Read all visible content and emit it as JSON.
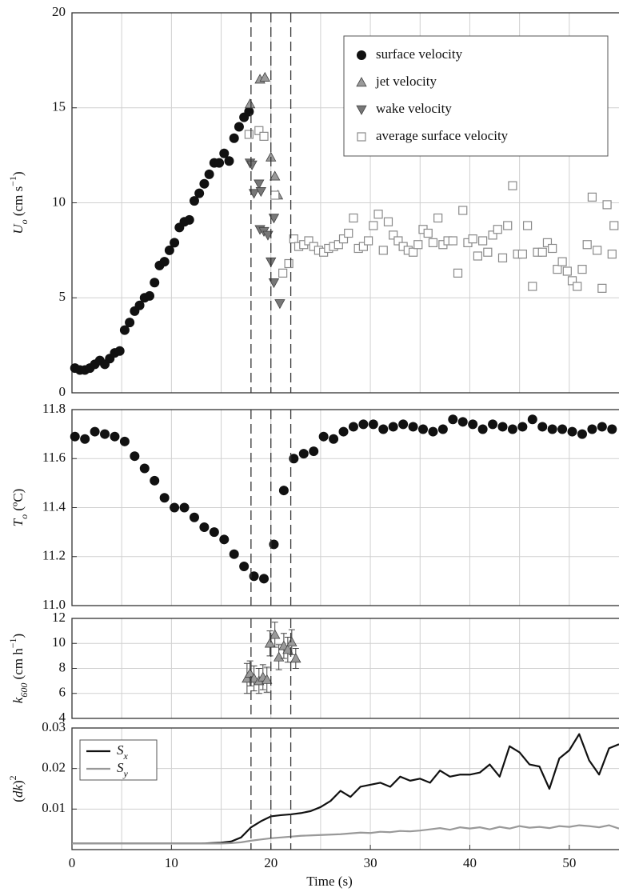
{
  "chart_data": [
    {
      "type": "scatter",
      "ylabel": [
        "U",
        "o",
        " (cm s",
        "−1",
        ")"
      ],
      "xlim": [
        0,
        55
      ],
      "ylim": [
        0,
        20
      ],
      "yticks": [
        0,
        5,
        10,
        15,
        20
      ],
      "xgrid": [
        5,
        10,
        15,
        20,
        25,
        30,
        35,
        40,
        45,
        50
      ],
      "grid": true,
      "legend": "upper right",
      "series": [
        {
          "name": "surface velocity",
          "marker": "circle",
          "color": "#111111",
          "x": [
            0.3,
            0.8,
            1.3,
            1.8,
            2.3,
            2.8,
            3.3,
            3.8,
            4.3,
            4.8,
            5.3,
            5.8,
            6.3,
            6.8,
            7.3,
            7.8,
            8.3,
            8.8,
            9.3,
            9.8,
            10.3,
            10.8,
            11.3,
            11.8,
            12.3,
            12.8,
            13.3,
            13.8,
            14.3,
            14.8,
            15.3,
            15.8,
            16.3,
            16.8,
            17.3,
            17.8
          ],
          "values": [
            1.3,
            1.2,
            1.2,
            1.3,
            1.5,
            1.7,
            1.5,
            1.8,
            2.1,
            2.2,
            3.3,
            3.7,
            4.3,
            4.6,
            5.0,
            5.1,
            5.8,
            6.7,
            6.9,
            7.5,
            7.9,
            8.7,
            9.0,
            9.1,
            10.1,
            10.5,
            11.0,
            11.5,
            12.1,
            12.1,
            12.6,
            12.2,
            13.4,
            14.0,
            14.5,
            14.8
          ]
        },
        {
          "name": "jet velocity",
          "marker": "triangle-up",
          "color": "#9a9a9a",
          "x": [
            17.9,
            18.9,
            19.4,
            20.0,
            20.4,
            20.7
          ],
          "values": [
            15.2,
            16.5,
            16.6,
            12.4,
            11.4,
            10.4
          ]
        },
        {
          "name": "wake velocity",
          "marker": "triangle-down",
          "color": "#777777",
          "x": [
            17.9,
            18.1,
            18.3,
            18.8,
            19.0,
            18.9,
            19.3,
            19.7,
            20.0,
            20.3,
            20.9,
            20.3
          ],
          "values": [
            12.1,
            12.0,
            10.5,
            11.0,
            10.6,
            8.6,
            8.5,
            8.3,
            6.9,
            5.8,
            4.7,
            9.2
          ]
        },
        {
          "name": "average surface velocity",
          "marker": "square",
          "color": "#8a8a8a",
          "x": [
            17.8,
            18.8,
            19.3,
            20.4,
            21.2,
            21.8,
            22.3,
            22.8,
            23.3,
            23.8,
            24.3,
            24.8,
            25.3,
            25.8,
            26.3,
            26.8,
            27.3,
            27.8,
            28.3,
            28.8,
            29.3,
            29.8,
            30.3,
            30.8,
            31.3,
            31.8,
            32.3,
            32.8,
            33.3,
            33.8,
            34.3,
            34.8,
            35.3,
            35.8,
            36.3,
            36.8,
            37.3,
            37.8,
            38.3,
            38.8,
            39.3,
            39.8,
            40.3,
            40.8,
            41.3,
            41.8,
            42.3,
            42.8,
            43.3,
            43.8,
            44.3,
            44.8,
            45.3,
            45.8,
            46.3,
            46.8,
            47.3,
            47.8,
            48.3,
            48.8,
            49.3,
            49.8,
            50.3,
            50.8,
            51.3,
            51.8,
            52.3,
            52.8,
            53.3,
            53.8,
            54.3,
            54.5
          ],
          "values": [
            13.6,
            13.8,
            13.5,
            10.4,
            6.3,
            6.8,
            8.1,
            7.7,
            7.8,
            8.0,
            7.7,
            7.5,
            7.4,
            7.6,
            7.7,
            7.8,
            8.1,
            8.4,
            9.2,
            7.6,
            7.7,
            8.0,
            8.8,
            9.4,
            7.5,
            9.0,
            8.3,
            8.0,
            7.7,
            7.5,
            7.4,
            7.8,
            8.6,
            8.4,
            7.9,
            9.2,
            7.8,
            8.0,
            8.0,
            6.3,
            9.6,
            7.9,
            8.1,
            7.2,
            8.0,
            7.4,
            8.3,
            8.6,
            7.1,
            8.8,
            10.9,
            7.3,
            7.3,
            8.8,
            5.6,
            7.4,
            7.4,
            7.9,
            7.6,
            6.5,
            6.9,
            6.4,
            5.9,
            5.6,
            6.5,
            7.8,
            10.3,
            7.5,
            5.5,
            9.9,
            7.3,
            8.8
          ]
        }
      ]
    },
    {
      "type": "scatter",
      "ylabel": [
        "T",
        "o",
        " (ºC)"
      ],
      "xlim": [
        0,
        55
      ],
      "ylim": [
        11.0,
        11.8
      ],
      "yticks": [
        {
          "value": 11.0,
          "label": "11.0"
        },
        11.2,
        11.4,
        11.6,
        11.8
      ],
      "xgrid": [
        5,
        10,
        15,
        20,
        25,
        30,
        35,
        40,
        45,
        50
      ],
      "grid": true,
      "series": [
        {
          "marker": "circle",
          "color": "#111111",
          "x": [
            0.3,
            1.3,
            2.3,
            3.3,
            4.3,
            5.3,
            6.3,
            7.3,
            8.3,
            9.3,
            10.3,
            11.3,
            12.3,
            13.3,
            14.3,
            15.3,
            16.3,
            17.3,
            18.3,
            19.3,
            20.3,
            21.3,
            22.3,
            23.3,
            24.3,
            25.3,
            26.3,
            27.3,
            28.3,
            29.3,
            30.3,
            31.3,
            32.3,
            33.3,
            34.3,
            35.3,
            36.3,
            37.3,
            38.3,
            39.3,
            40.3,
            41.3,
            42.3,
            43.3,
            44.3,
            45.3,
            46.3,
            47.3,
            48.3,
            49.3,
            50.3,
            51.3,
            52.3,
            53.3,
            54.3
          ],
          "values": [
            11.69,
            11.68,
            11.71,
            11.7,
            11.69,
            11.67,
            11.61,
            11.56,
            11.51,
            11.44,
            11.4,
            11.4,
            11.36,
            11.32,
            11.3,
            11.27,
            11.21,
            11.16,
            11.12,
            11.11,
            11.25,
            11.47,
            11.6,
            11.62,
            11.63,
            11.69,
            11.68,
            11.71,
            11.73,
            11.74,
            11.74,
            11.72,
            11.73,
            11.74,
            11.73,
            11.72,
            11.71,
            11.72,
            11.76,
            11.75,
            11.74,
            11.72,
            11.74,
            11.73,
            11.72,
            11.73,
            11.76,
            11.73,
            11.72,
            11.72,
            11.71,
            11.7,
            11.72,
            11.73,
            11.72
          ]
        }
      ]
    },
    {
      "type": "errorbar",
      "ylabel": [
        "k",
        "600",
        " (cm h",
        "−1",
        ")"
      ],
      "xlim": [
        0,
        55
      ],
      "ylim": [
        4,
        12
      ],
      "yticks": [
        4,
        6,
        8,
        10,
        12
      ],
      "xgrid": [
        5,
        10,
        15,
        20,
        25,
        30,
        35,
        40,
        45,
        50
      ],
      "grid": true,
      "series": [
        {
          "marker": "triangle-up",
          "color": "#9a9a9a",
          "x": [
            17.6,
            17.9,
            18.3,
            18.8,
            19.2,
            19.6,
            19.9,
            20.4,
            20.8,
            21.3,
            21.7,
            22.1,
            22.5
          ],
          "values": [
            7.2,
            7.6,
            7.2,
            7.0,
            7.3,
            7.1,
            10.0,
            10.7,
            8.9,
            9.8,
            9.5,
            10.1,
            8.8
          ],
          "errors": [
            1.2,
            1.0,
            1.0,
            1.0,
            1.0,
            1.0,
            1.0,
            1.0,
            1.0,
            1.0,
            1.0,
            1.0,
            0.8
          ]
        }
      ]
    },
    {
      "type": "line",
      "ylabel": [
        "(",
        "dk",
        ")",
        "2"
      ],
      "xlabel": "Time (s)",
      "xlim": [
        0,
        55
      ],
      "ylim": [
        0,
        0.03
      ],
      "yticks": [
        0.01,
        0.02,
        0.03
      ],
      "xticks": [
        0,
        10,
        20,
        30,
        40,
        50
      ],
      "xgrid": [
        5,
        10,
        15,
        20,
        25,
        30,
        35,
        40,
        45,
        50
      ],
      "grid": true,
      "legend": "upper left",
      "x": [
        0,
        1,
        2,
        3,
        4,
        5,
        6,
        7,
        8,
        9,
        10,
        11,
        12,
        13,
        14,
        15,
        16,
        17,
        18,
        19,
        20,
        21,
        22,
        23,
        24,
        25,
        26,
        27,
        28,
        29,
        30,
        31,
        32,
        33,
        34,
        35,
        36,
        37,
        38,
        39,
        40,
        41,
        42,
        43,
        44,
        45,
        46,
        47,
        48,
        49,
        50,
        51,
        52,
        53,
        54,
        55
      ],
      "series": [
        {
          "name": [
            "S",
            "x"
          ],
          "color": "#111111",
          "values": [
            0.0015,
            0.0015,
            0.0015,
            0.0015,
            0.0015,
            0.0015,
            0.0015,
            0.0015,
            0.0015,
            0.0015,
            0.0015,
            0.0015,
            0.0015,
            0.0015,
            0.0016,
            0.0017,
            0.002,
            0.003,
            0.0055,
            0.007,
            0.0082,
            0.0085,
            0.0087,
            0.009,
            0.0095,
            0.0105,
            0.012,
            0.0145,
            0.013,
            0.0155,
            0.016,
            0.0165,
            0.0155,
            0.018,
            0.017,
            0.0175,
            0.0165,
            0.0195,
            0.018,
            0.0185,
            0.0185,
            0.019,
            0.021,
            0.018,
            0.0255,
            0.024,
            0.021,
            0.0205,
            0.015,
            0.0225,
            0.0245,
            0.0285,
            0.022,
            0.0185,
            0.025,
            0.026
          ]
        },
        {
          "name": [
            "S",
            "y"
          ],
          "color": "#999999",
          "values": [
            0.0015,
            0.0015,
            0.0015,
            0.0015,
            0.0015,
            0.0015,
            0.0015,
            0.0015,
            0.0015,
            0.0015,
            0.0015,
            0.0015,
            0.0015,
            0.0015,
            0.0015,
            0.0015,
            0.0016,
            0.0018,
            0.0022,
            0.0025,
            0.0028,
            0.003,
            0.0032,
            0.0034,
            0.0035,
            0.0036,
            0.0037,
            0.0038,
            0.004,
            0.0042,
            0.0041,
            0.0044,
            0.0043,
            0.0046,
            0.0045,
            0.0047,
            0.005,
            0.0053,
            0.0049,
            0.0055,
            0.0052,
            0.0055,
            0.005,
            0.0056,
            0.0052,
            0.0058,
            0.0054,
            0.0056,
            0.0053,
            0.0058,
            0.0056,
            0.006,
            0.0058,
            0.0055,
            0.006,
            0.0052
          ]
        }
      ]
    }
  ],
  "event_lines": [
    18,
    20,
    22
  ]
}
